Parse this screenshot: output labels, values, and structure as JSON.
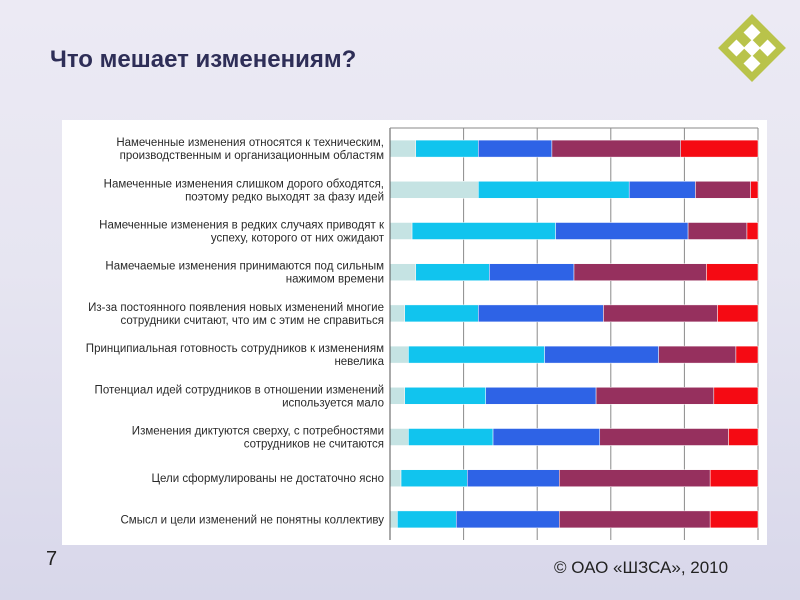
{
  "slide": {
    "title": "Что мешает изменениям?",
    "page_number": "7",
    "copyright": "© ОАО «ШЗСА», 2010"
  },
  "logo": {
    "icon": "diamond-grid-logo",
    "color": "#b9c34a"
  },
  "chart_data": {
    "type": "bar",
    "orientation": "horizontal",
    "stacked": true,
    "normalized": true,
    "grid": true,
    "legend": "none",
    "title": "",
    "xlabel": "",
    "ylabel": "",
    "xlim": [
      0,
      100
    ],
    "categories": [
      [
        "Намеченные изменения относятся к техническим,",
        "производственным и организационным областям"
      ],
      [
        "Намеченные изменения слишком дорого обходятся,",
        "поэтому редко выходят за фазу идей"
      ],
      [
        "Намеченные изменения в редких случаях приводят к",
        "успеху, которого от них ожидают"
      ],
      [
        "Намечаемые изменения принимаются под сильным",
        "нажимом времени"
      ],
      [
        "Из-за постоянного появления новых изменений многие",
        "сотрудники считают, что им с этим не справиться"
      ],
      [
        "Принципиальная готовность сотрудников к изменениям",
        "невелика"
      ],
      [
        "Потенциал идей сотрудников в отношении изменений",
        "используется мало"
      ],
      [
        "Изменения диктуются сверху, с потребностями",
        "сотрудников не считаются"
      ],
      [
        "Цели сформулированы не достаточно ясно"
      ],
      [
        "Смысл и цели изменений не понятны коллективу"
      ]
    ],
    "series": [
      {
        "color": "#c5e3e3",
        "values": [
          7,
          24,
          6,
          7,
          4,
          5,
          4,
          5,
          3,
          2
        ]
      },
      {
        "color": "#11c4ee",
        "values": [
          17,
          41,
          39,
          20,
          20,
          37,
          22,
          23,
          18,
          16
        ]
      },
      {
        "color": "#2e63e6",
        "values": [
          20,
          18,
          36,
          23,
          34,
          31,
          30,
          29,
          25,
          28
        ]
      },
      {
        "color": "#96305e",
        "values": [
          35,
          15,
          16,
          36,
          31,
          21,
          32,
          35,
          41,
          41
        ]
      },
      {
        "color": "#f50a13",
        "values": [
          21,
          2,
          3,
          14,
          11,
          6,
          12,
          8,
          13,
          13
        ]
      }
    ]
  }
}
